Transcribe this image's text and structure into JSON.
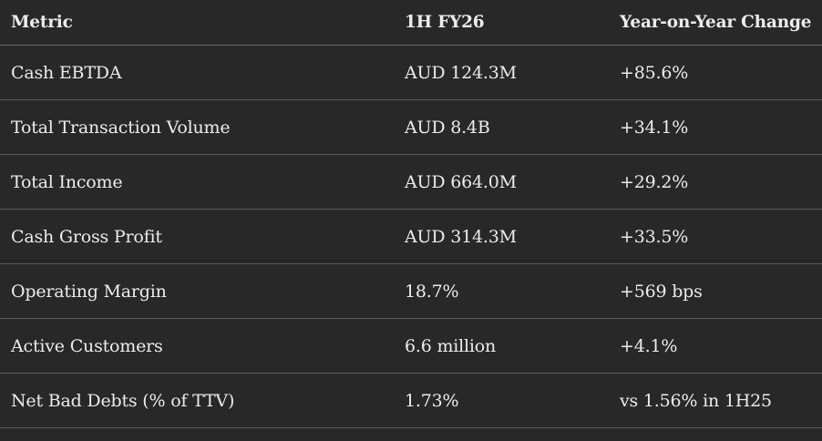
{
  "table": {
    "headers": [
      "Metric",
      "1H FY26",
      "Year-on-Year Change"
    ],
    "rows": [
      [
        "Cash EBTDA",
        "AUD 124.3M",
        "+85.6%"
      ],
      [
        "Total Transaction Volume",
        "AUD 8.4B",
        "+34.1%"
      ],
      [
        "Total Income",
        "AUD 664.0M",
        "+29.2%"
      ],
      [
        "Cash Gross Profit",
        "AUD 314.3M",
        "+33.5%"
      ],
      [
        "Operating Margin",
        "18.7%",
        "+569 bps"
      ],
      [
        "Active Customers",
        "6.6 million",
        "+4.1%"
      ],
      [
        "Net Bad Debts (% of TTV)",
        "1.73%",
        "vs 1.56% in 1H25"
      ]
    ]
  }
}
